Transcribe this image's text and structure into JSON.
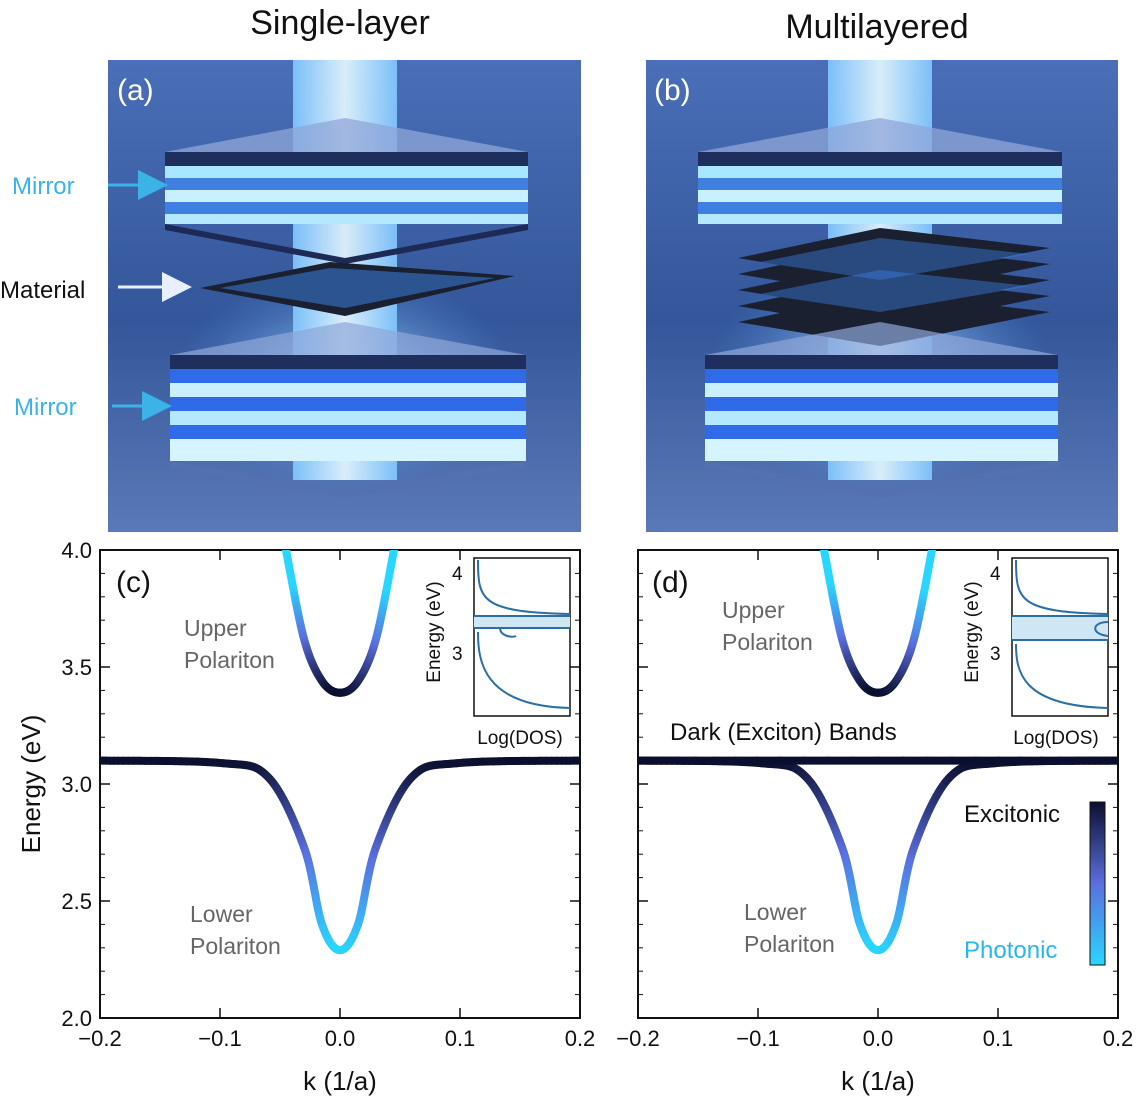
{
  "titles": {
    "left": "Single-layer",
    "right": "Multilayered"
  },
  "illustration": {
    "a": {
      "letter": "(a)",
      "labels": {
        "mirror_top": "Mirror",
        "material": "Material",
        "mirror_bottom": "Mirror"
      }
    },
    "b": {
      "letter": "(b)"
    },
    "colors": {
      "background": "#3a5fa8",
      "glow": "#bfe9ff",
      "mirror_label": "#3bb3e6",
      "material": "#1a2030"
    }
  },
  "chart_data": [
    {
      "panel": "(c)",
      "type": "line",
      "xlabel": "k (1/a)",
      "ylabel": "Energy (eV)",
      "xlim": [
        -0.2,
        0.2
      ],
      "ylim": [
        2.0,
        4.0
      ],
      "xticks": [
        "−0.2",
        "−0.1",
        "0.0",
        "0.1",
        "0.2"
      ],
      "yticks": [
        "2.0",
        "2.5",
        "3.0",
        "3.5",
        "4.0"
      ],
      "series": [
        {
          "k": [
            -0.045,
            -0.03,
            -0.015,
            0.0,
            0.015,
            0.03,
            0.045
          ],
          "energy": [
            4.0,
            3.62,
            3.44,
            3.39,
            3.44,
            3.62,
            4.0
          ]
        },
        {
          "k": [
            -0.2,
            -0.1,
            -0.06,
            -0.03,
            -0.015,
            0.0,
            0.015,
            0.03,
            0.06,
            0.1,
            0.2
          ],
          "energy": [
            3.1,
            3.09,
            3.03,
            2.73,
            2.4,
            2.29,
            2.4,
            2.73,
            3.03,
            3.09,
            3.1
          ]
        }
      ],
      "annotations": {
        "upper": [
          "Upper",
          "Polariton"
        ],
        "lower": [
          "Lower",
          "Polariton"
        ]
      },
      "inset": {
        "ylabel": "Energy (eV)",
        "xlabel": "Log(DOS)",
        "yticks": [
          "4",
          "3"
        ]
      }
    },
    {
      "panel": "(d)",
      "type": "line",
      "xlabel": "k (1/a)",
      "ylabel": "",
      "xlim": [
        -0.2,
        0.2
      ],
      "ylim": [
        2.0,
        4.0
      ],
      "xticks": [
        "−0.2",
        "−0.1",
        "0.0",
        "0.1",
        "0.2"
      ],
      "series": [
        {
          "k": [
            -0.045,
            -0.03,
            -0.015,
            0.0,
            0.015,
            0.03,
            0.045
          ],
          "energy": [
            4.0,
            3.62,
            3.44,
            3.39,
            3.44,
            3.62,
            4.0
          ]
        },
        {
          "k": [
            -0.2,
            -0.1,
            -0.06,
            -0.03,
            -0.015,
            0.0,
            0.015,
            0.03,
            0.06,
            0.1,
            0.2
          ],
          "energy": [
            3.1,
            3.09,
            3.03,
            2.73,
            2.4,
            2.29,
            2.4,
            2.73,
            3.03,
            3.09,
            3.1
          ]
        },
        {
          "k": [
            -0.2,
            0.2
          ],
          "energy": [
            3.1,
            3.1
          ]
        }
      ],
      "annotations": {
        "upper": [
          "Upper",
          "Polariton"
        ],
        "lower": [
          "Lower",
          "Polariton"
        ],
        "dark": "Dark (Exciton) Bands"
      },
      "colorbar": {
        "top": "Excitonic",
        "bottom": "Photonic",
        "colors": [
          "#0b0f2e",
          "#5a6fe0",
          "#29d6ff"
        ]
      },
      "inset": {
        "ylabel": "Energy (eV)",
        "xlabel": "Log(DOS)",
        "yticks": [
          "4",
          "3"
        ]
      }
    }
  ]
}
